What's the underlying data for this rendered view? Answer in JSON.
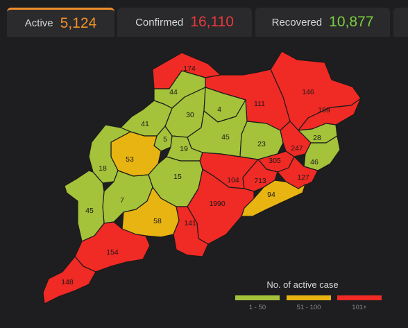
{
  "tabs": [
    {
      "label": "Active",
      "value": "5,124",
      "color": "#f0902a"
    },
    {
      "label": "Confirmed",
      "value": "16,110",
      "color": "#e8383d"
    },
    {
      "label": "Recovered",
      "value": "10,877",
      "color": "#7ccf3f"
    }
  ],
  "colors": {
    "low": "#a4c23a",
    "mid": "#e8b412",
    "high": "#f02a24",
    "border": "#1a1a1a",
    "label": "#1a1a1a"
  },
  "districts": [
    {
      "label": "174",
      "level": "high"
    },
    {
      "label": "146",
      "level": "high"
    },
    {
      "label": "44",
      "level": "low"
    },
    {
      "label": "111",
      "level": "high"
    },
    {
      "label": "189",
      "level": "high"
    },
    {
      "label": "30",
      "level": "low"
    },
    {
      "label": "4",
      "level": "low"
    },
    {
      "label": "41",
      "level": "low"
    },
    {
      "label": "5",
      "level": "low"
    },
    {
      "label": "45",
      "level": "low"
    },
    {
      "label": "28",
      "level": "low"
    },
    {
      "label": "23",
      "level": "low"
    },
    {
      "label": "19",
      "level": "low"
    },
    {
      "label": "247",
      "level": "high"
    },
    {
      "label": "53",
      "level": "mid"
    },
    {
      "label": "305",
      "level": "high"
    },
    {
      "label": "46",
      "level": "low"
    },
    {
      "label": "18",
      "level": "low"
    },
    {
      "label": "15",
      "level": "low"
    },
    {
      "label": "104",
      "level": "high"
    },
    {
      "label": "713",
      "level": "high"
    },
    {
      "label": "127",
      "level": "high"
    },
    {
      "label": "94",
      "level": "mid"
    },
    {
      "label": "7",
      "level": "low"
    },
    {
      "label": "1990",
      "level": "high"
    },
    {
      "label": "45",
      "level": "low"
    },
    {
      "label": "58",
      "level": "mid"
    },
    {
      "label": "141",
      "level": "high"
    },
    {
      "label": "154",
      "level": "high"
    },
    {
      "label": "148",
      "level": "high"
    }
  ],
  "legend": {
    "title": "No. of active case",
    "items": [
      {
        "label": "1 - 50",
        "level": "low"
      },
      {
        "label": "51 - 100",
        "level": "mid"
      },
      {
        "label": "101+",
        "level": "high"
      }
    ]
  }
}
